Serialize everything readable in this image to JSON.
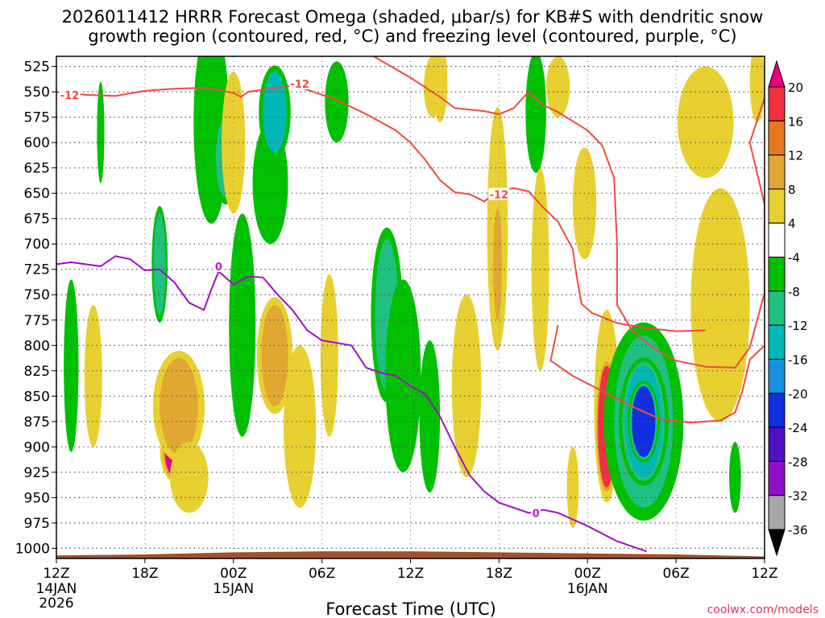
{
  "chart_data": {
    "type": "heatmap",
    "title_line1": "2026011412 HRRR Forecast Omega (shaded, μbar/s) for KB#S with dendritic snow",
    "title_line2": "growth region (contoured, red, °C) and freezing level (contoured, purple, °C)",
    "xlabel": "Forecast Time (UTC)",
    "credit": "coolwx.com/models",
    "x_range_hours": [
      0,
      48
    ],
    "y_range_mb": [
      515,
      1010
    ],
    "y_ticks": [
      "525",
      "550",
      "575",
      "600",
      "625",
      "650",
      "675",
      "700",
      "725",
      "750",
      "775",
      "800",
      "825",
      "850",
      "875",
      "900",
      "925",
      "950",
      "975",
      "1000"
    ],
    "x_ticks": [
      {
        "h": 0,
        "label": "12Z",
        "date": "14JAN",
        "year": "2026"
      },
      {
        "h": 6,
        "label": "18Z"
      },
      {
        "h": 12,
        "label": "00Z",
        "date": "15JAN"
      },
      {
        "h": 18,
        "label": "06Z"
      },
      {
        "h": 24,
        "label": "12Z"
      },
      {
        "h": 30,
        "label": "18Z"
      },
      {
        "h": 36,
        "label": "00Z",
        "date": "16JAN"
      },
      {
        "h": 42,
        "label": "06Z"
      },
      {
        "h": 48,
        "label": "12Z"
      }
    ],
    "colorbar": {
      "labels": [
        "20",
        "16",
        "12",
        "8",
        "4",
        "-4",
        "-8",
        "-12",
        "-16",
        "-20",
        "-24",
        "-28",
        "-32",
        "-36"
      ],
      "colors": [
        "#e8007e",
        "#f0303e",
        "#e87820",
        "#e0a830",
        "#e8d030",
        "#ffffff",
        "#00c000",
        "#20c080",
        "#00b8b8",
        "#1890e0",
        "#1030e0",
        "#5010c0",
        "#9010c8",
        "#a8a8a8",
        "#000000"
      ]
    },
    "contour_labels": {
      "red": "-12",
      "purple": "0"
    },
    "red_contour_minus12": [
      [
        0,
        550
      ],
      [
        2,
        553
      ],
      [
        4,
        554
      ],
      [
        6,
        549
      ],
      [
        8,
        547
      ],
      [
        10,
        546
      ],
      [
        12,
        551
      ],
      [
        12.5,
        555
      ],
      [
        13,
        550
      ],
      [
        14,
        548
      ],
      [
        15,
        546
      ],
      [
        16,
        544
      ],
      [
        17,
        548
      ],
      [
        19,
        558
      ],
      [
        21,
        572
      ],
      [
        23,
        588
      ],
      [
        24,
        600
      ],
      [
        25,
        617
      ],
      [
        26,
        637
      ],
      [
        27,
        649
      ],
      [
        28,
        651
      ],
      [
        29,
        658
      ],
      [
        30,
        647
      ],
      [
        31,
        645
      ],
      [
        32,
        648
      ],
      [
        33,
        664
      ],
      [
        34,
        678
      ],
      [
        35,
        705
      ],
      [
        35.3,
        735
      ],
      [
        35.6,
        759
      ],
      [
        36.3,
        768
      ],
      [
        38,
        778
      ],
      [
        40,
        783
      ],
      [
        42,
        786
      ],
      [
        44,
        785
      ]
    ],
    "red_contour_upper": [
      [
        21.5,
        515
      ],
      [
        24,
        536
      ],
      [
        26,
        555
      ],
      [
        27,
        566
      ],
      [
        29,
        569
      ],
      [
        30,
        572
      ],
      [
        31,
        566
      ],
      [
        32,
        550
      ],
      [
        33,
        563
      ],
      [
        34,
        570
      ],
      [
        36,
        588
      ],
      [
        37,
        603
      ],
      [
        37.8,
        635
      ],
      [
        38,
        700
      ],
      [
        38,
        760
      ],
      [
        39,
        785
      ],
      [
        40.5,
        803
      ],
      [
        42,
        815
      ],
      [
        44,
        821
      ],
      [
        46,
        822
      ],
      [
        47,
        802
      ],
      [
        48,
        748
      ],
      [
        48,
        735
      ],
      [
        48,
        661
      ],
      [
        47,
        600
      ],
      [
        48,
        556
      ]
    ],
    "red_contour_lower": [
      [
        34,
        780
      ],
      [
        33.5,
        815
      ],
      [
        35,
        830
      ],
      [
        37,
        845
      ],
      [
        39,
        860
      ],
      [
        41,
        873
      ],
      [
        43,
        876
      ],
      [
        45,
        874
      ],
      [
        46,
        866
      ],
      [
        46.5,
        845
      ],
      [
        47,
        814
      ],
      [
        48,
        800
      ]
    ],
    "purple_contour_0": [
      [
        0,
        720
      ],
      [
        1,
        718
      ],
      [
        3,
        722
      ],
      [
        4,
        712
      ],
      [
        5,
        715
      ],
      [
        6,
        726
      ],
      [
        7,
        725
      ],
      [
        8,
        738
      ],
      [
        9,
        758
      ],
      [
        10,
        765
      ],
      [
        10.5,
        745
      ],
      [
        11,
        727
      ],
      [
        12,
        740
      ],
      [
        13,
        732
      ],
      [
        14,
        733
      ],
      [
        15,
        750
      ],
      [
        16,
        765
      ],
      [
        17,
        785
      ],
      [
        18,
        795
      ],
      [
        20,
        800
      ],
      [
        21,
        822
      ],
      [
        22,
        827
      ],
      [
        23,
        830
      ],
      [
        24,
        840
      ],
      [
        25,
        848
      ],
      [
        26,
        870
      ],
      [
        27,
        900
      ],
      [
        28,
        928
      ],
      [
        29,
        944
      ],
      [
        30,
        955
      ],
      [
        31,
        960
      ],
      [
        32,
        965
      ],
      [
        33,
        962
      ],
      [
        34,
        965
      ],
      [
        36,
        978
      ],
      [
        38,
        993
      ],
      [
        40,
        1003
      ]
    ],
    "omega_cells": [
      {
        "t": 8.3,
        "p": 905,
        "w": 0.95,
        "h": 55,
        "v": 24
      },
      {
        "t": 8.3,
        "p": 860,
        "w": 1.3,
        "h": 95,
        "v": 10
      },
      {
        "t": 9.0,
        "p": 930,
        "w": 1.3,
        "h": 70,
        "v": 6
      },
      {
        "t": 12.6,
        "p": 840,
        "w": 0.45,
        "h": 50,
        "v": -22
      },
      {
        "t": 12.6,
        "p": 780,
        "w": 0.9,
        "h": 220,
        "v": -6
      },
      {
        "t": 14.8,
        "p": 810,
        "w": 0.9,
        "h": 100,
        "v": 8
      },
      {
        "t": 14.5,
        "p": 640,
        "w": 1.2,
        "h": 120,
        "v": -6
      },
      {
        "t": 16.5,
        "p": 880,
        "w": 1.1,
        "h": 160,
        "v": 6
      },
      {
        "t": 18.5,
        "p": 810,
        "w": 0.6,
        "h": 160,
        "v": 6
      },
      {
        "t": 22.4,
        "p": 770,
        "w": 0.8,
        "h": 150,
        "v": -9
      },
      {
        "t": 23.5,
        "p": 830,
        "w": 1.2,
        "h": 190,
        "v": -6
      },
      {
        "t": 25.3,
        "p": 870,
        "w": 0.7,
        "h": 150,
        "v": -6
      },
      {
        "t": 27.8,
        "p": 840,
        "w": 1.0,
        "h": 180,
        "v": 5
      },
      {
        "t": 29.9,
        "p": 685,
        "w": 0.7,
        "h": 240,
        "v": 6
      },
      {
        "t": 29.9,
        "p": 720,
        "w": 0.3,
        "h": 110,
        "v": 10
      },
      {
        "t": 32.5,
        "p": 570,
        "w": 0.7,
        "h": 120,
        "v": -6
      },
      {
        "t": 32.8,
        "p": 725,
        "w": 0.6,
        "h": 200,
        "v": 5
      },
      {
        "t": 35,
        "p": 940,
        "w": 0.4,
        "h": 80,
        "v": 5
      },
      {
        "t": 37.3,
        "p": 860,
        "w": 0.85,
        "h": 190,
        "v": 7
      },
      {
        "t": 37.3,
        "p": 880,
        "w": 0.6,
        "h": 120,
        "v": 18
      },
      {
        "t": 39.8,
        "p": 875,
        "w": 2.0,
        "h": 170,
        "v": -8
      },
      {
        "t": 39.8,
        "p": 875,
        "w": 1.25,
        "h": 110,
        "v": -14
      },
      {
        "t": 39.8,
        "p": 875,
        "w": 0.8,
        "h": 70,
        "v": -22
      },
      {
        "t": 44,
        "p": 580,
        "w": 1.9,
        "h": 110,
        "v": 5
      },
      {
        "t": 45,
        "p": 760,
        "w": 2.0,
        "h": 230,
        "v": 5
      },
      {
        "t": 2.5,
        "p": 830,
        "w": 0.6,
        "h": 140,
        "v": 5
      },
      {
        "t": 1.0,
        "p": 820,
        "w": 0.5,
        "h": 170,
        "v": -6
      },
      {
        "t": 3.0,
        "p": 590,
        "w": 0.25,
        "h": 100,
        "v": -6
      },
      {
        "t": 7.0,
        "p": 720,
        "w": 0.4,
        "h": 100,
        "v": -9
      },
      {
        "t": 10.5,
        "p": 580,
        "w": 1.2,
        "h": 200,
        "v": -6
      },
      {
        "t": 11.5,
        "p": 615,
        "w": 0.7,
        "h": 80,
        "v": -8
      },
      {
        "t": 12.0,
        "p": 600,
        "w": 0.8,
        "h": 140,
        "v": 4
      },
      {
        "t": 14.8,
        "p": 570,
        "w": 0.8,
        "h": 80,
        "v": -12
      },
      {
        "t": 19.0,
        "p": 560,
        "w": 0.8,
        "h": 80,
        "v": -6
      },
      {
        "t": 25.5,
        "p": 545,
        "w": 0.6,
        "h": 60,
        "v": 5
      },
      {
        "t": 26.0,
        "p": 540,
        "w": 0.5,
        "h": 80,
        "v": 4
      },
      {
        "t": 34.0,
        "p": 545,
        "w": 0.8,
        "h": 60,
        "v": 5
      },
      {
        "t": 35.8,
        "p": 660,
        "w": 0.8,
        "h": 110,
        "v": 5
      },
      {
        "t": 46.0,
        "p": 930,
        "w": 0.4,
        "h": 70,
        "v": -6
      },
      {
        "t": 47.5,
        "p": 540,
        "w": 0.5,
        "h": 80,
        "v": 5
      }
    ]
  }
}
